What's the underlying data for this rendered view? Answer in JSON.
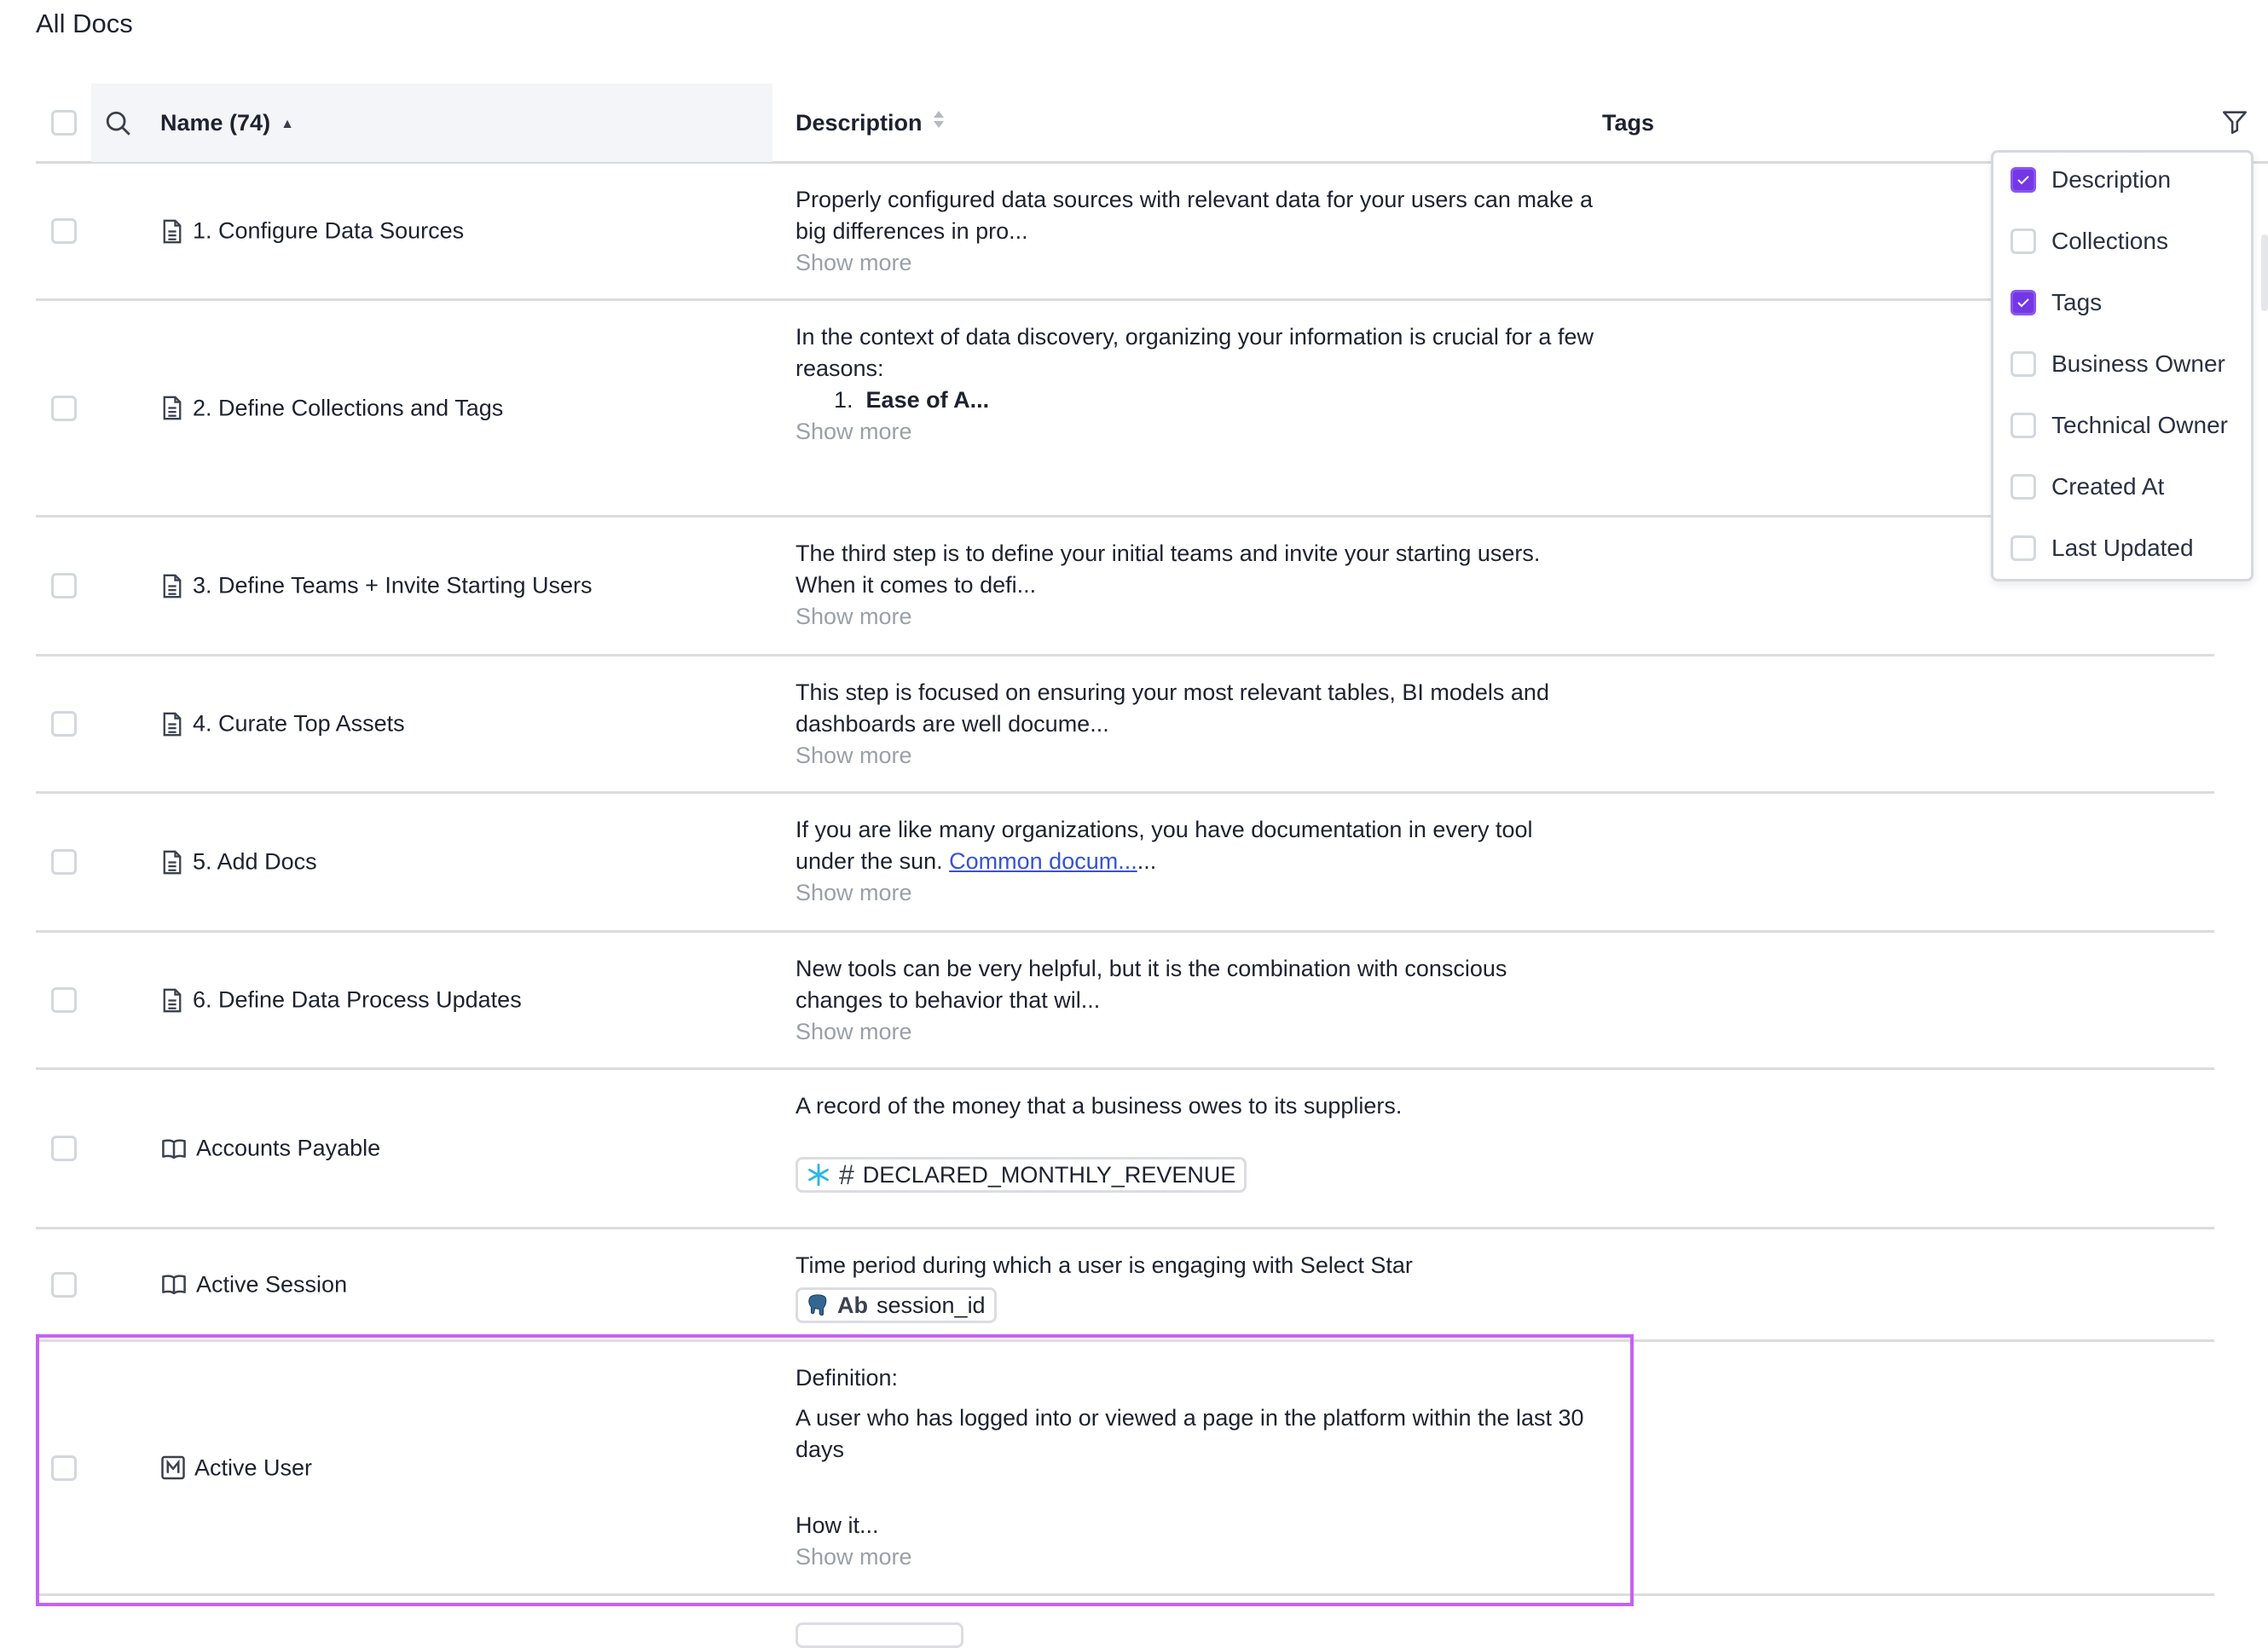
{
  "page_title": "All Docs",
  "header": {
    "name_label": "Name (74)",
    "sort_asc_caret": "▲",
    "description_label": "Description",
    "tags_label": "Tags"
  },
  "rows": [
    {
      "icon": "document-icon",
      "name": "1. Configure Data Sources",
      "desc": [
        "Properly configured data sources with relevant data for your users can make a big differences in pro..."
      ],
      "show_more": "Show more"
    },
    {
      "icon": "document-icon",
      "name": "2. Define Collections and Tags",
      "desc": [
        "In the context of data discovery, organizing your information is crucial for a few reasons:"
      ],
      "list_num": "1.",
      "list_text": "Ease of A...",
      "show_more": "Show more"
    },
    {
      "icon": "document-icon",
      "name": "3. Define Teams + Invite Starting Users",
      "desc": [
        "The third step is to define your initial teams and invite your starting users. When it comes to defi..."
      ],
      "show_more": "Show more"
    },
    {
      "icon": "document-icon",
      "name": "4. Curate Top Assets",
      "desc": [
        "This step is focused on ensuring your most relevant tables, BI models and dashboards are well docume..."
      ],
      "show_more": "Show more"
    },
    {
      "icon": "document-icon",
      "name": "5. Add Docs",
      "desc_pre": "If you are like many organizations, you have documentation in every tool under the sun. ",
      "desc_link": "Common docum...",
      "desc_post": "...",
      "show_more": "Show more"
    },
    {
      "icon": "document-icon",
      "name": "6. Define Data Process Updates",
      "desc": [
        "New tools can be very helpful, but it is the combination with conscious changes to behavior that wil..."
      ],
      "show_more": "Show more"
    },
    {
      "icon": "book-icon",
      "name": "Accounts Payable",
      "desc": [
        "A record of the money that a business owes to its suppliers."
      ],
      "tag": {
        "source_icon": "snowflake-icon",
        "type_icon": "#",
        "label": "DECLARED_MONTHLY_REVENUE"
      }
    },
    {
      "icon": "book-icon",
      "name": "Active Session",
      "desc": [
        "Time period during which a user is engaging with Select Star"
      ],
      "tag": {
        "source_icon": "postgres-elephant-icon",
        "type_icon": "Ab",
        "label": "session_id"
      }
    },
    {
      "icon": "metric-icon",
      "name": "Active User",
      "desc": [
        "Definition:",
        "A user who has logged into or viewed a page in the platform within the last 30 days",
        "How it..."
      ],
      "show_more": "Show more"
    }
  ],
  "column_menu": {
    "items": [
      {
        "label": "Description",
        "checked": true
      },
      {
        "label": "Collections",
        "checked": false
      },
      {
        "label": "Tags",
        "checked": true
      },
      {
        "label": "Business Owner",
        "checked": false
      },
      {
        "label": "Technical Owner",
        "checked": false
      },
      {
        "label": "Created At",
        "checked": false
      },
      {
        "label": "Last Updated",
        "checked": false
      }
    ]
  },
  "colors": {
    "accent": "#7437e6",
    "highlight": "#c561f5",
    "link": "#3553d1",
    "muted": "#9aa0a8"
  }
}
